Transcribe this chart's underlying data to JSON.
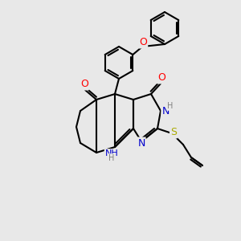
{
  "background_color": "#e8e8e8",
  "atom_colors": {
    "O": "#ff0000",
    "N": "#0000cc",
    "S": "#aaaa00",
    "C": "#000000",
    "H": "#000000"
  },
  "bond_color": "#000000",
  "bond_lw": 1.5,
  "font_size": 8,
  "figsize": [
    3.0,
    3.0
  ],
  "dpi": 100
}
